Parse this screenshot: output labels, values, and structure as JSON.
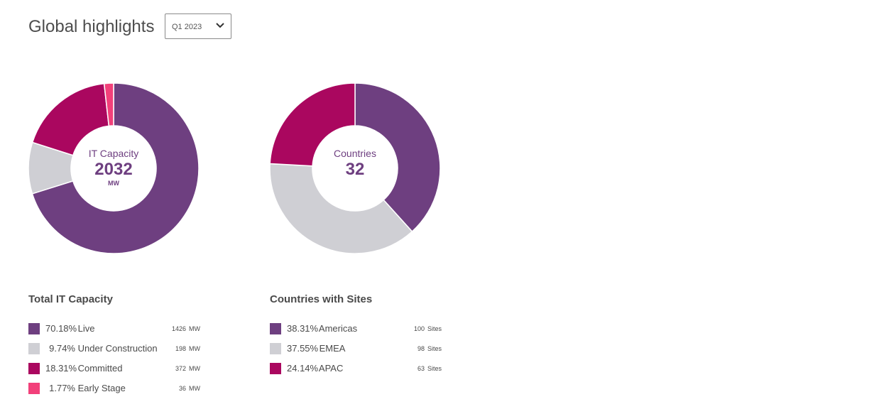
{
  "header": {
    "title": "Global highlights",
    "period_select": {
      "value": "Q1 2023"
    }
  },
  "chart_data": [
    {
      "type": "pie",
      "center": {
        "label": "IT Capacity",
        "value": "2032",
        "unit": "MW"
      },
      "legend_title": "Total IT Capacity",
      "unit": "MW",
      "slices": [
        {
          "name": "Live",
          "percent_label": "70.18%",
          "percent": 70.18,
          "amount": "1426",
          "color": "#6e3f80"
        },
        {
          "name": "Under Construction",
          "percent_label": "9.74%",
          "percent": 9.74,
          "amount": "198",
          "color": "#cfcfd4"
        },
        {
          "name": "Committed",
          "percent_label": "18.31%",
          "percent": 18.31,
          "amount": "372",
          "color": "#aa075f"
        },
        {
          "name": "Early Stage",
          "percent_label": "1.77%",
          "percent": 1.77,
          "amount": "36",
          "color": "#f2407a"
        }
      ]
    },
    {
      "type": "pie",
      "center": {
        "label": "Countries",
        "value": "32"
      },
      "legend_title": "Countries with Sites",
      "unit": "Sites",
      "slices": [
        {
          "name": "Americas",
          "percent_label": "38.31%",
          "percent": 38.31,
          "amount": "100",
          "color": "#6e3f80"
        },
        {
          "name": "EMEA",
          "percent_label": "37.55%",
          "percent": 37.55,
          "amount": "98",
          "color": "#cfcfd4"
        },
        {
          "name": "APAC",
          "percent_label": "24.14%",
          "percent": 24.14,
          "amount": "63",
          "color": "#aa075f"
        }
      ]
    }
  ]
}
